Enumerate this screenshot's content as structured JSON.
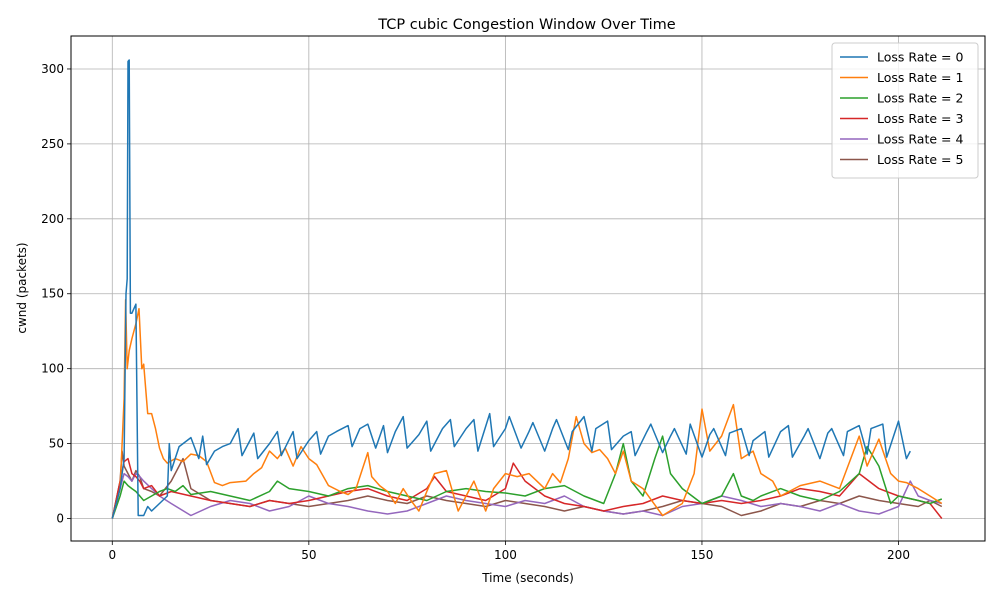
{
  "chart_data": {
    "type": "line",
    "title": "TCP cubic Congestion Window Over Time",
    "xlabel": "Time (seconds)",
    "ylabel": "cwnd (packets)",
    "xlim": [
      -10.5,
      222
    ],
    "ylim": [
      -15,
      322
    ],
    "xticks": [
      0,
      50,
      100,
      150,
      200
    ],
    "yticks": [
      0,
      50,
      100,
      150,
      200,
      250,
      300
    ],
    "grid": true,
    "legend_position": "top-right",
    "series": [
      {
        "name": "Loss Rate = 0",
        "color": "#1f77b4",
        "x": [
          0,
          2,
          3,
          3.5,
          3.8,
          4.0,
          4.3,
          4.6,
          5,
          6,
          6.6,
          7,
          8,
          9,
          10,
          12,
          14,
          14.5,
          15,
          17,
          20,
          22,
          23,
          24,
          26,
          28,
          30,
          32,
          33,
          36,
          37,
          40,
          42,
          43,
          46,
          47,
          50,
          52,
          53,
          55,
          57,
          60,
          61,
          63,
          65,
          67,
          69,
          70,
          72,
          74,
          75,
          78,
          80,
          81,
          84,
          86,
          87,
          90,
          92,
          93,
          96,
          97,
          100,
          101,
          104,
          106,
          107,
          110,
          112,
          113,
          116,
          117,
          120,
          122,
          123,
          126,
          127,
          130,
          132,
          133,
          136,
          137,
          140,
          142,
          143,
          146,
          147,
          150,
          152,
          153,
          156,
          157,
          160,
          162,
          163,
          166,
          167,
          170,
          172,
          173,
          176,
          177,
          180,
          182,
          183,
          186,
          187,
          190,
          192,
          193,
          196,
          197,
          200,
          202,
          203
        ],
        "y": [
          0,
          20,
          40,
          150,
          160,
          305,
          306,
          137,
          137,
          143,
          2,
          2,
          2,
          8,
          5,
          10,
          15,
          50,
          32,
          48,
          54,
          40,
          55,
          36,
          45,
          48,
          50,
          60,
          42,
          57,
          40,
          50,
          58,
          42,
          58,
          40,
          52,
          58,
          43,
          55,
          58,
          62,
          48,
          60,
          63,
          47,
          62,
          44,
          58,
          68,
          47,
          56,
          65,
          45,
          60,
          66,
          48,
          60,
          66,
          45,
          70,
          48,
          60,
          68,
          47,
          58,
          64,
          45,
          60,
          66,
          46,
          58,
          68,
          45,
          60,
          65,
          46,
          55,
          58,
          42,
          58,
          63,
          44,
          55,
          60,
          43,
          63,
          41,
          56,
          60,
          42,
          57,
          60,
          42,
          52,
          58,
          41,
          58,
          62,
          41,
          55,
          60,
          40,
          57,
          60,
          42,
          58,
          62,
          43,
          60,
          63,
          41,
          65,
          40,
          45
        ]
      },
      {
        "name": "Loss Rate = 1",
        "color": "#ff7f0e",
        "x": [
          0,
          2,
          3,
          3.4,
          3.8,
          4.3,
          5,
          6,
          6.8,
          7.5,
          8,
          9,
          10,
          11,
          12,
          13,
          14,
          16,
          18,
          20,
          22,
          24,
          26,
          28,
          30,
          34,
          36,
          38,
          40,
          42,
          44,
          46,
          48,
          50,
          52,
          55,
          58,
          60,
          62,
          65,
          66,
          68,
          70,
          72,
          74,
          76,
          78,
          80,
          82,
          85,
          88,
          90,
          92,
          95,
          97,
          100,
          103,
          106,
          110,
          112,
          114,
          116,
          118,
          120,
          122,
          124,
          126,
          128,
          130,
          132,
          135,
          140,
          145,
          148,
          150,
          152,
          155,
          158,
          160,
          163,
          165,
          168,
          170,
          175,
          180,
          185,
          190,
          192,
          195,
          198,
          200,
          202,
          205,
          208,
          211
        ],
        "y": [
          0,
          20,
          80,
          146,
          100,
          112,
          120,
          130,
          140,
          100,
          103,
          70,
          70,
          60,
          47,
          40,
          37,
          40,
          38,
          43,
          42,
          38,
          24,
          22,
          24,
          25,
          30,
          34,
          45,
          40,
          47,
          35,
          48,
          40,
          36,
          22,
          18,
          16,
          20,
          44,
          28,
          22,
          18,
          10,
          20,
          12,
          5,
          18,
          30,
          32,
          5,
          15,
          25,
          5,
          20,
          30,
          28,
          30,
          20,
          30,
          24,
          40,
          68,
          50,
          44,
          46,
          40,
          30,
          45,
          25,
          20,
          2,
          10,
          30,
          73,
          45,
          55,
          76,
          40,
          45,
          30,
          25,
          15,
          22,
          25,
          20,
          55,
          35,
          53,
          30,
          25,
          24,
          20,
          15,
          10
        ]
      },
      {
        "name": "Loss Rate = 2",
        "color": "#2ca02c",
        "x": [
          0,
          2,
          3,
          4,
          5,
          6,
          7,
          8,
          10,
          12,
          14,
          16,
          18,
          20,
          25,
          30,
          35,
          40,
          42,
          45,
          50,
          55,
          60,
          65,
          70,
          75,
          80,
          85,
          90,
          95,
          100,
          105,
          110,
          115,
          120,
          125,
          128,
          130,
          132,
          135,
          138,
          140,
          142,
          145,
          150,
          155,
          158,
          160,
          163,
          165,
          170,
          175,
          180,
          185,
          190,
          192,
          195,
          198,
          200,
          205,
          208,
          211
        ],
        "y": [
          0,
          15,
          25,
          22,
          20,
          18,
          15,
          12,
          15,
          18,
          20,
          18,
          22,
          16,
          18,
          15,
          12,
          18,
          25,
          20,
          18,
          15,
          20,
          22,
          18,
          15,
          12,
          18,
          20,
          18,
          17,
          15,
          20,
          22,
          15,
          10,
          30,
          50,
          25,
          15,
          40,
          55,
          30,
          20,
          10,
          15,
          30,
          15,
          12,
          15,
          20,
          15,
          12,
          18,
          30,
          48,
          35,
          10,
          15,
          12,
          10,
          13
        ]
      },
      {
        "name": "Loss Rate = 3",
        "color": "#d62728",
        "x": [
          0,
          2,
          3,
          4,
          5,
          6,
          7,
          8,
          10,
          12,
          15,
          20,
          25,
          30,
          35,
          40,
          45,
          50,
          55,
          60,
          65,
          70,
          75,
          80,
          82,
          85,
          90,
          95,
          100,
          102,
          105,
          110,
          115,
          120,
          125,
          130,
          135,
          140,
          145,
          150,
          155,
          160,
          165,
          170,
          175,
          180,
          185,
          190,
          195,
          200,
          205,
          208,
          211
        ],
        "y": [
          0,
          25,
          38,
          40,
          30,
          28,
          25,
          20,
          22,
          15,
          18,
          15,
          12,
          10,
          8,
          12,
          10,
          12,
          15,
          18,
          20,
          15,
          12,
          20,
          28,
          18,
          15,
          12,
          20,
          37,
          25,
          15,
          10,
          8,
          5,
          8,
          10,
          15,
          12,
          10,
          12,
          10,
          12,
          15,
          20,
          18,
          15,
          30,
          20,
          15,
          12,
          10,
          0
        ]
      },
      {
        "name": "Loss Rate = 4",
        "color": "#9467bd",
        "x": [
          0,
          2,
          3,
          4,
          5,
          6,
          7,
          8,
          10,
          12,
          15,
          20,
          25,
          30,
          35,
          40,
          45,
          50,
          55,
          60,
          65,
          70,
          75,
          80,
          85,
          90,
          95,
          100,
          105,
          110,
          115,
          120,
          125,
          130,
          135,
          140,
          145,
          150,
          155,
          160,
          165,
          170,
          175,
          180,
          185,
          190,
          195,
          200,
          203,
          205,
          208,
          211
        ],
        "y": [
          0,
          20,
          30,
          28,
          25,
          30,
          28,
          25,
          20,
          15,
          10,
          2,
          8,
          12,
          10,
          5,
          8,
          15,
          10,
          8,
          5,
          3,
          5,
          10,
          15,
          12,
          10,
          8,
          12,
          10,
          15,
          8,
          5,
          3,
          5,
          2,
          8,
          10,
          15,
          12,
          8,
          10,
          8,
          5,
          10,
          5,
          3,
          8,
          25,
          15,
          12,
          10
        ]
      },
      {
        "name": "Loss Rate = 5",
        "color": "#8c564b",
        "x": [
          0,
          2,
          2.5,
          3,
          4,
          5,
          6,
          7,
          8,
          10,
          12,
          15,
          18,
          20,
          25,
          30,
          35,
          40,
          45,
          50,
          55,
          60,
          65,
          70,
          75,
          80,
          85,
          90,
          95,
          100,
          105,
          110,
          115,
          120,
          125,
          130,
          135,
          140,
          145,
          150,
          155,
          160,
          165,
          170,
          175,
          180,
          185,
          190,
          195,
          200,
          205,
          208,
          211
        ],
        "y": [
          0,
          25,
          45,
          35,
          30,
          25,
          32,
          28,
          20,
          18,
          15,
          25,
          40,
          20,
          12,
          10,
          8,
          12,
          10,
          8,
          10,
          12,
          15,
          12,
          10,
          15,
          12,
          10,
          8,
          12,
          10,
          8,
          5,
          8,
          5,
          3,
          5,
          8,
          12,
          10,
          8,
          2,
          5,
          10,
          8,
          12,
          10,
          15,
          12,
          10,
          8,
          12,
          8
        ]
      }
    ]
  }
}
